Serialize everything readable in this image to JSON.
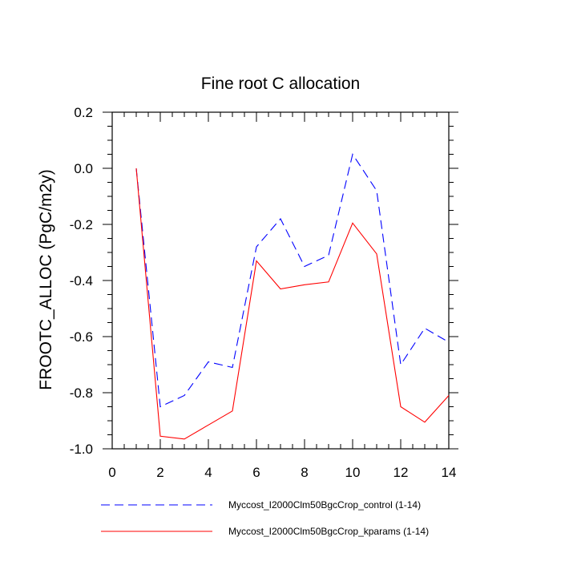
{
  "chart_data": {
    "type": "line",
    "title": "Fine root C allocation",
    "xlabel": "",
    "ylabel": "FROOTC_ALLOC  (PgC/m2y)",
    "xlim": [
      0,
      14
    ],
    "ylim": [
      -1.0,
      0.2
    ],
    "xticks": [
      0,
      2,
      4,
      6,
      8,
      10,
      12,
      14
    ],
    "xtick_labels": [
      "0",
      "2",
      "4",
      "6",
      "8",
      "10",
      "12",
      "14"
    ],
    "yticks": [
      0.2,
      0.0,
      -0.2,
      -0.4,
      -0.6,
      -0.8,
      -1.0
    ],
    "ytick_labels": [
      "0.2",
      "0.0",
      "-0.2",
      "-0.4",
      "-0.6",
      "-0.8",
      "-1.0"
    ],
    "grid": false,
    "legend_position": "bottom",
    "series": [
      {
        "name": "Myccost_I2000Clm50BgcCrop_control (1-14)",
        "color": "#0000ff",
        "dash": "dashed",
        "x": [
          1,
          2,
          3,
          4,
          5,
          6,
          7,
          8,
          9,
          10,
          11,
          12,
          13,
          14
        ],
        "y": [
          0.0,
          -0.85,
          -0.81,
          -0.69,
          -0.71,
          -0.28,
          -0.18,
          -0.35,
          -0.31,
          0.05,
          -0.08,
          -0.7,
          -0.57,
          -0.62
        ]
      },
      {
        "name": "Myccost_I2000Clm50BgcCrop_kparams (1-14)",
        "color": "#ff0000",
        "dash": "solid",
        "x": [
          1,
          2,
          3,
          4,
          5,
          6,
          7,
          8,
          9,
          10,
          11,
          12,
          13,
          14
        ],
        "y": [
          0.0,
          -0.955,
          -0.965,
          -0.915,
          -0.865,
          -0.33,
          -0.43,
          -0.415,
          -0.405,
          -0.195,
          -0.305,
          -0.85,
          -0.905,
          -0.81
        ]
      }
    ]
  }
}
